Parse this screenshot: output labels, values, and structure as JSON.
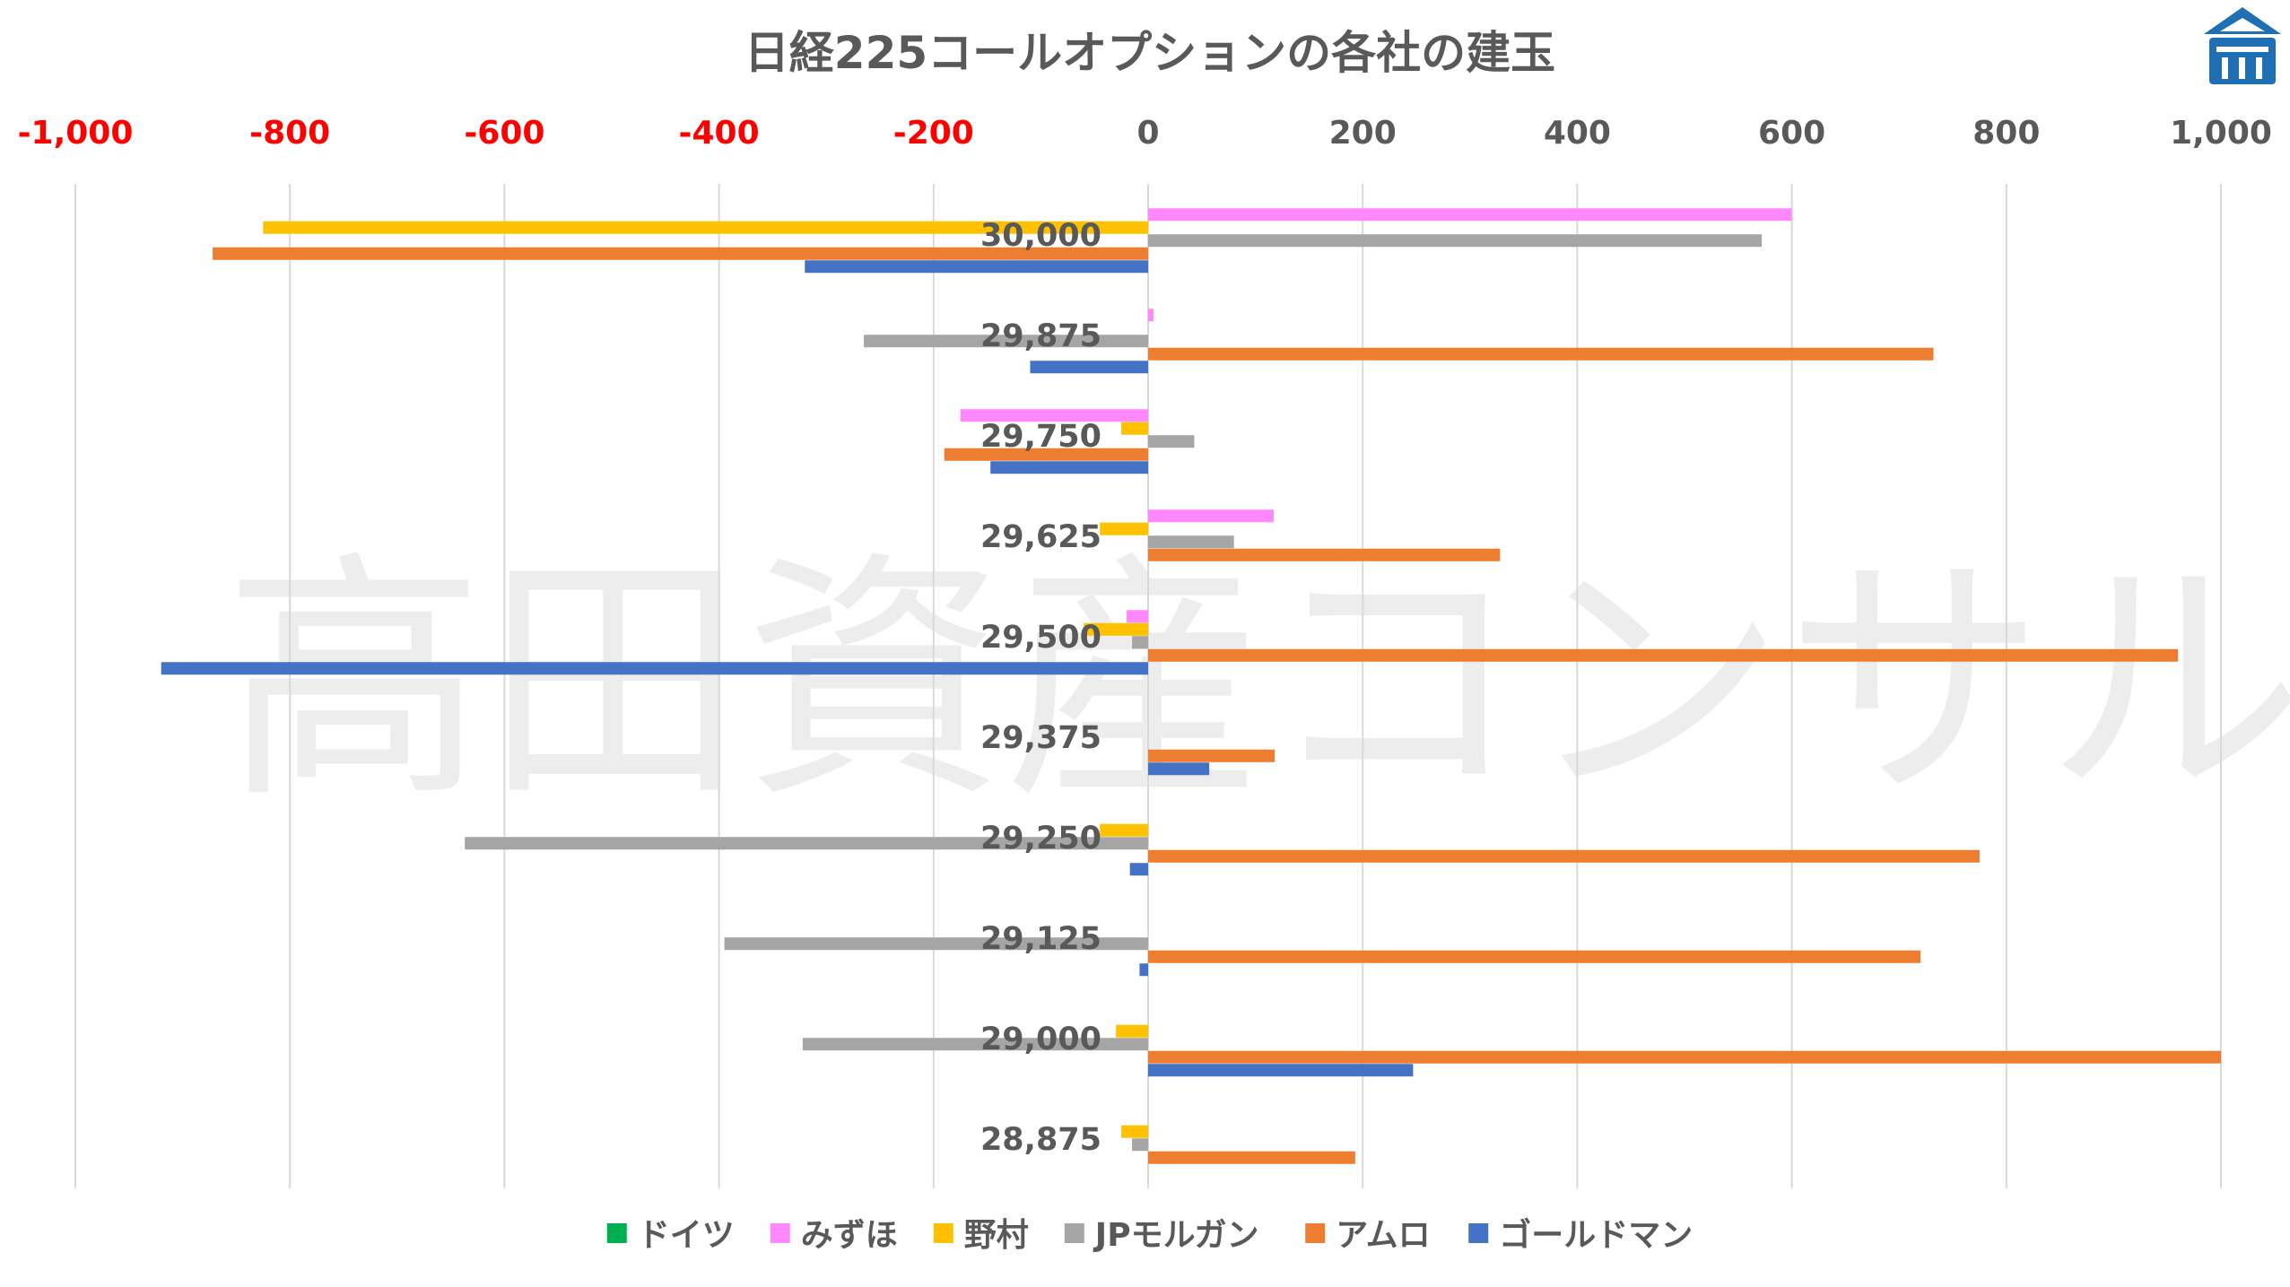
{
  "watermark": "高田資産コンサル",
  "chart_data": {
    "type": "bar",
    "orientation": "horizontal",
    "title": "日経225コールオプションの各社の建玉",
    "xlim": [
      -1000,
      1000
    ],
    "x_ticks": [
      -1000,
      -800,
      -600,
      -400,
      -200,
      0,
      200,
      400,
      600,
      800,
      1000
    ],
    "x_tick_labels": [
      "-1,000",
      "-800",
      "-600",
      "-400",
      "-200",
      "0",
      "200",
      "400",
      "600",
      "800",
      "1,000"
    ],
    "negative_tick_color": "#ff0000",
    "grid": "vertical",
    "legend_position": "bottom",
    "categories": [
      "30,000",
      "29,875",
      "29,750",
      "29,625",
      "29,500",
      "29,375",
      "29,250",
      "29,125",
      "29,000",
      "28,875"
    ],
    "series": [
      {
        "name": "ドイツ",
        "color": "#00b050",
        "values": [
          0,
          0,
          0,
          0,
          0,
          0,
          0,
          0,
          0,
          0
        ]
      },
      {
        "name": "みずほ",
        "color": "#ff88ff",
        "values": [
          600,
          5,
          -175,
          117,
          -20,
          0,
          0,
          0,
          0,
          0
        ]
      },
      {
        "name": "野村",
        "color": "#ffc000",
        "values": [
          -825,
          0,
          -25,
          -45,
          -60,
          0,
          -45,
          0,
          -30,
          -25
        ]
      },
      {
        "name": "JPモルガン",
        "color": "#a5a5a5",
        "values": [
          572,
          -265,
          43,
          80,
          -15,
          0,
          -637,
          -395,
          -322,
          -15
        ]
      },
      {
        "name": "アムロ",
        "color": "#ed7d31",
        "values": [
          -872,
          732,
          -190,
          328,
          960,
          118,
          775,
          720,
          1000,
          193
        ]
      },
      {
        "name": "ゴールドマン",
        "color": "#4472c4",
        "values": [
          -320,
          -110,
          -147,
          0,
          -920,
          57,
          -17,
          -8,
          247,
          0
        ]
      }
    ]
  }
}
